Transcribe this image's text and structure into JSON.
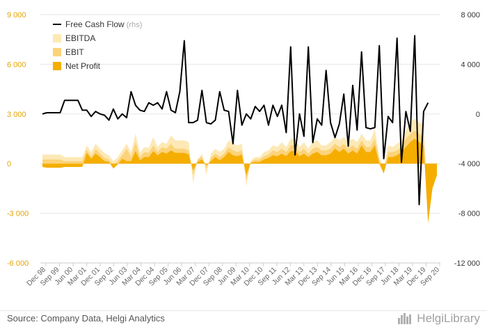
{
  "chart_data": {
    "type": "area",
    "left_axis": {
      "ticks": [
        9000,
        6000,
        3000,
        0,
        -3000,
        -6000
      ],
      "labels": [
        "9 000",
        "6 000",
        "3 000",
        "0",
        "-3 000",
        "-6 000"
      ],
      "range": [
        -6000,
        9000
      ]
    },
    "right_axis": {
      "ticks": [
        8000,
        4000,
        0,
        -4000,
        -8000,
        -12000
      ],
      "labels": [
        "8 000",
        "4 000",
        "0",
        "-4 000",
        "-8 000",
        "-12 000"
      ],
      "range": [
        -12000,
        8000
      ]
    },
    "x_tick_labels": [
      "Dec 98",
      "Sep 99",
      "Jun 00",
      "Mar 01",
      "Dec 01",
      "Sep 02",
      "Jun 03",
      "Mar 04",
      "Dec 04",
      "Sep 05",
      "Jun 06",
      "Mar 07",
      "Dec 07",
      "Sep 08",
      "Jun 09",
      "Mar 10",
      "Dec 10",
      "Sep 11",
      "Jun 12",
      "Mar 13",
      "Dec 13",
      "Sep 14",
      "Jun 15",
      "Mar 16",
      "Dec 16",
      "Sep 17",
      "Jun 18",
      "Mar 19",
      "Dec 19",
      "Sep 20"
    ],
    "legend": [
      {
        "name": "Free Cash Flow",
        "suffix": "(rhs)",
        "color": "#000000"
      },
      {
        "name": "EBITDA",
        "color": "#fde9b6"
      },
      {
        "name": "EBIT",
        "color": "#fcd37a"
      },
      {
        "name": "Net Profit",
        "color": "#f5ae00"
      }
    ],
    "series": [
      {
        "name": "EBITDA",
        "axis": "left",
        "color": "#fde9b6",
        "values": [
          550,
          550,
          550,
          550,
          550,
          400,
          400,
          400,
          400,
          400,
          1100,
          700,
          1200,
          900,
          650,
          500,
          150,
          400,
          800,
          1200,
          700,
          1800,
          650,
          1000,
          950,
          1600,
          1000,
          1300,
          1200,
          1700,
          1400,
          1400,
          1400,
          1300,
          -1200,
          200,
          600,
          -700,
          600,
          900,
          700,
          900,
          1400,
          1200,
          1100,
          1200,
          -1400,
          200,
          400,
          400,
          700,
          800,
          1100,
          1000,
          1300,
          1000,
          1500,
          1500,
          1000,
          1300,
          900,
          1300,
          1400,
          1100,
          1100,
          1300,
          1600,
          1400,
          1600,
          1300,
          1500,
          1300,
          1800,
          1400,
          1400,
          2100,
          400,
          -200,
          1100,
          1000,
          1200,
          1400,
          2000,
          2500,
          2700,
          2500,
          2300,
          -2400,
          -1400,
          -400
        ]
      },
      {
        "name": "EBIT",
        "axis": "left",
        "color": "#fcd37a",
        "values": [
          250,
          250,
          250,
          250,
          250,
          150,
          150,
          150,
          150,
          150,
          850,
          400,
          900,
          600,
          350,
          250,
          -100,
          150,
          500,
          900,
          400,
          1300,
          400,
          700,
          650,
          1100,
          700,
          1000,
          900,
          1200,
          900,
          900,
          900,
          800,
          -700,
          250,
          450,
          -300,
          350,
          600,
          400,
          600,
          1000,
          800,
          700,
          800,
          -1000,
          100,
          250,
          250,
          450,
          550,
          800,
          700,
          900,
          700,
          1100,
          1100,
          700,
          900,
          600,
          900,
          1000,
          800,
          800,
          900,
          1200,
          1000,
          1200,
          900,
          1100,
          900,
          1400,
          1000,
          1000,
          1500,
          200,
          -400,
          700,
          700,
          800,
          1000,
          1500,
          1800,
          2000,
          1800,
          1600,
          -3000,
          -1000,
          -200
        ]
      },
      {
        "name": "Net Profit",
        "axis": "left",
        "color": "#f5ae00",
        "values": [
          -200,
          -250,
          -250,
          -250,
          -250,
          -200,
          -200,
          -200,
          -200,
          -200,
          650,
          300,
          600,
          400,
          150,
          100,
          -300,
          -50,
          300,
          150,
          150,
          750,
          200,
          400,
          400,
          750,
          500,
          700,
          600,
          800,
          650,
          650,
          650,
          550,
          -400,
          100,
          250,
          -100,
          150,
          400,
          200,
          400,
          700,
          500,
          450,
          550,
          -700,
          50,
          100,
          100,
          250,
          350,
          500,
          450,
          600,
          450,
          750,
          750,
          450,
          600,
          400,
          600,
          700,
          500,
          500,
          600,
          900,
          700,
          900,
          600,
          800,
          600,
          1100,
          700,
          700,
          1100,
          0,
          -600,
          400,
          400,
          500,
          700,
          1000,
          1300,
          1500,
          1300,
          1100,
          -3600,
          -1500,
          -700
        ]
      },
      {
        "name": "Free Cash Flow",
        "axis": "right",
        "color": "#000000",
        "values": [
          0,
          100,
          100,
          100,
          100,
          1100,
          1100,
          1100,
          1100,
          300,
          300,
          -200,
          200,
          0,
          -100,
          -500,
          400,
          -400,
          0,
          -300,
          1800,
          700,
          300,
          200,
          900,
          700,
          900,
          400,
          1800,
          300,
          100,
          1800,
          5900,
          -700,
          -700,
          -500,
          1900,
          -700,
          -800,
          -500,
          1800,
          300,
          200,
          -2400,
          1900,
          -900,
          0,
          -400,
          600,
          200,
          700,
          -900,
          700,
          -200,
          700,
          -1500,
          5400,
          -3300,
          0,
          -1800,
          5400,
          -2300,
          -400,
          -900,
          3500,
          -700,
          -1900,
          -800,
          1600,
          -2600,
          2300,
          -1300,
          5000,
          -1100,
          -1200,
          -1100,
          5500,
          -3600,
          -200,
          -700,
          6100,
          -3900,
          200,
          -1400,
          6300,
          -7300,
          200,
          900
        ]
      }
    ]
  },
  "footer": {
    "source": "Source: Company Data, Helgi Analytics",
    "brand": "HelgiLibrary"
  }
}
